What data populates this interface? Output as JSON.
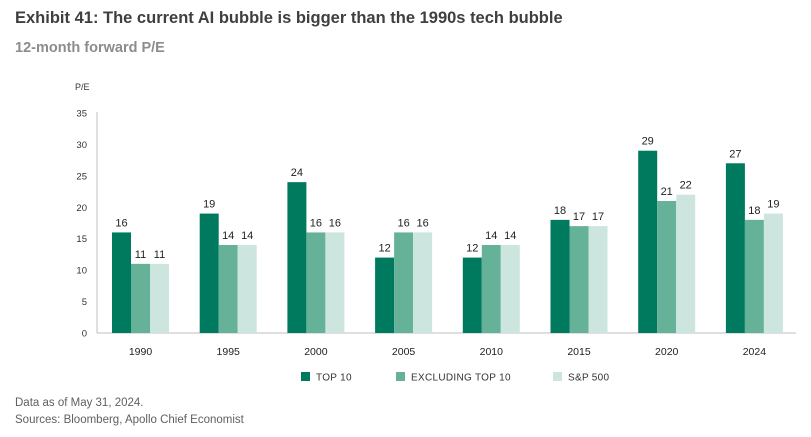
{
  "header": {
    "title": "Exhibit 41: The current AI bubble is bigger than the 1990s tech bubble",
    "subtitle": "12-month forward P/E"
  },
  "footer": {
    "note": "Data as of May 31, 2024.",
    "sources": "Sources: Bloomberg, Apollo Chief Economist"
  },
  "chart_data": {
    "type": "bar",
    "title": "Exhibit 41: The current AI bubble is bigger than the 1990s tech bubble",
    "subtitle": "12-month forward P/E",
    "xlabel": "",
    "ylabel": "P/E",
    "ylim": [
      0,
      35
    ],
    "yticks": [
      0,
      5,
      10,
      15,
      20,
      25,
      30,
      35
    ],
    "grid": false,
    "legend_position": "bottom-center",
    "categories": [
      "1990",
      "1995",
      "2000",
      "2005",
      "2010",
      "2015",
      "2020",
      "2024"
    ],
    "series": [
      {
        "name": "TOP 10",
        "color": "#007a5e",
        "values": [
          16,
          19,
          24,
          12,
          12,
          18,
          29,
          27
        ]
      },
      {
        "name": "EXCLUDING TOP 10",
        "color": "#66b299",
        "values": [
          11,
          14,
          16,
          16,
          14,
          17,
          21,
          18
        ]
      },
      {
        "name": "S&P 500",
        "color": "#cce5df",
        "values": [
          11,
          14,
          16,
          16,
          14,
          17,
          22,
          19
        ]
      }
    ],
    "data_labels": [
      [
        "16",
        "19",
        "24",
        "12",
        "12",
        "18",
        "29",
        "27"
      ],
      [
        "11",
        "14",
        "16",
        "16",
        "14",
        "17",
        "21",
        "18"
      ],
      [
        "11",
        "14",
        "16",
        "16",
        "14",
        "17",
        "22",
        "19"
      ]
    ]
  }
}
